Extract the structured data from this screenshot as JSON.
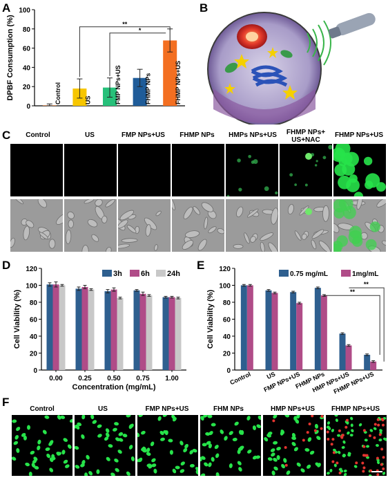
{
  "panel_labels": {
    "a": "A",
    "b": "B",
    "c": "C",
    "d": "D",
    "e": "E",
    "f": "F"
  },
  "chart_data": [
    {
      "panel": "A",
      "type": "bar",
      "ylabel": "DPBF Consumption (%)",
      "ylim": [
        0,
        100
      ],
      "yticks": [
        "0",
        "20",
        "40",
        "60",
        "80",
        "100"
      ],
      "categories": [
        "Control",
        "US",
        "FMP NPs+US",
        "FHMP NPs",
        "FHMP NPs+US"
      ],
      "values": [
        0.5,
        18,
        19,
        29,
        68
      ],
      "errors": [
        1.5,
        10,
        10,
        9,
        12
      ],
      "colors": [
        "#e07b39",
        "#f7c600",
        "#27c07a",
        "#1f5c99",
        "#f36f21"
      ],
      "significance": [
        "**",
        "*"
      ]
    },
    {
      "panel": "D",
      "type": "bar",
      "xlabel": "Concentration (mg/mL)",
      "ylabel": "Cell Viability (%)",
      "ylim": [
        0,
        120
      ],
      "yticks": [
        "0",
        "20",
        "40",
        "60",
        "80",
        "100",
        "120"
      ],
      "categories": [
        "0.00",
        "0.25",
        "0.50",
        "0.75",
        "1.00"
      ],
      "series": [
        {
          "name": "3h",
          "color": "#2e5f8f",
          "values": [
            101,
            96,
            93,
            94,
            86
          ],
          "errors": [
            2,
            2,
            2,
            1,
            1
          ]
        },
        {
          "name": "6h",
          "color": "#b04c88",
          "values": [
            101,
            98,
            95,
            90,
            86
          ],
          "errors": [
            3,
            2,
            2,
            2,
            1
          ]
        },
        {
          "name": "24h",
          "color": "#c8c8c8",
          "values": [
            100,
            95,
            85,
            88,
            85
          ],
          "errors": [
            1,
            1,
            1,
            1,
            1
          ]
        }
      ],
      "legend": "top-right"
    },
    {
      "panel": "E",
      "type": "bar",
      "ylabel": "Cell Viability (%)",
      "ylim": [
        0,
        120
      ],
      "yticks": [
        "0",
        "20",
        "40",
        "60",
        "80",
        "100",
        "120"
      ],
      "categories": [
        "Control",
        "US",
        "FMP NPs+US",
        "FHMP NPs",
        "HMP NPs+US",
        "FHMP NPs+US"
      ],
      "series": [
        {
          "name": "0.75 mg/mL",
          "color": "#2e5f8f",
          "values": [
            100,
            94,
            92,
            97,
            43,
            18
          ],
          "errors": [
            1,
            1,
            1,
            1,
            1,
            1
          ]
        },
        {
          "name": "1mg/mL",
          "color": "#b04c88",
          "values": [
            100,
            91,
            79,
            88,
            29,
            10
          ],
          "errors": [
            1,
            1,
            1,
            1,
            1,
            1
          ]
        }
      ],
      "significance": [
        "**",
        "**"
      ],
      "legend": "top"
    }
  ],
  "panel_c": {
    "headers": [
      "Control",
      "US",
      "FMP NPs+US",
      "FHMP NPs",
      "HMPs NPs+US",
      "FHMP NPs+",
      "US+NAC",
      "FHMP NPs+US"
    ]
  },
  "panel_f": {
    "headers": [
      "Control",
      "US",
      "FMP NPs+US",
      "FHM NPs",
      "HMP NPs+US",
      "FHMP NPs+US"
    ]
  },
  "colors": {
    "accent_green": "#27e34a",
    "accent_red": "#e3342f"
  }
}
